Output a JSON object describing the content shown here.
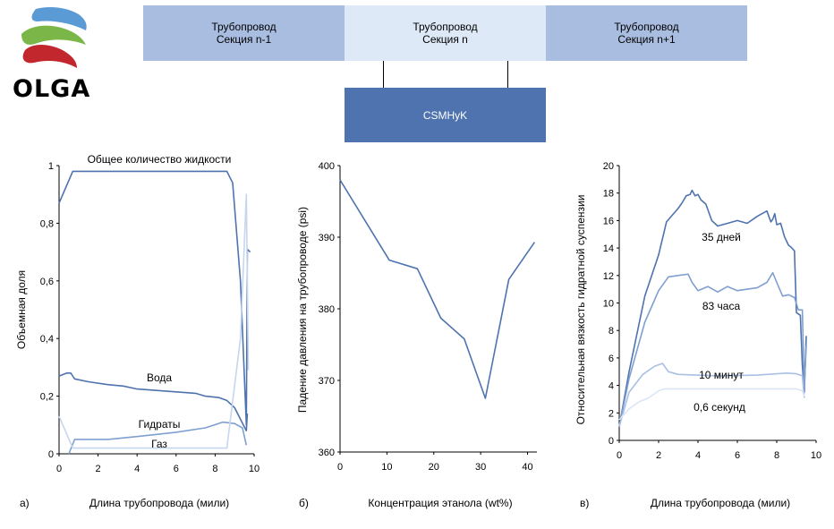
{
  "logo": {
    "text": "OLGA",
    "colors": [
      "#5b9bd5",
      "#7ab648",
      "#c1272d"
    ]
  },
  "sections": [
    {
      "line1": "Трубопровод",
      "line2": "Секция n-1",
      "color": "#a9bde0"
    },
    {
      "line1": "Трубопровод",
      "line2": "Секция n",
      "color": "#dde9f7"
    },
    {
      "line1": "Трубопровод",
      "line2": "Секция n+1",
      "color": "#a9bde0"
    }
  ],
  "module_box": {
    "label": "CSMHyK",
    "color": "#4e73ae"
  },
  "chart_data": [
    {
      "type": "line",
      "panel_label": "а)",
      "xlabel": "Длина трубопровода (мили)",
      "ylabel": "Объемная доля",
      "xlim": [
        0,
        10
      ],
      "ylim": [
        0,
        1
      ],
      "xticks": [
        "0",
        "2",
        "4",
        "6",
        "8",
        "10"
      ],
      "yticks": [
        "0",
        "0,2",
        "0,4",
        "0,6",
        "0,8",
        "1"
      ],
      "grid": false,
      "series": [
        {
          "name": "Общее количество жидкости",
          "color": "#4e73ae",
          "points": [
            [
              0,
              0.87
            ],
            [
              0.7,
              0.98
            ],
            [
              8.6,
              0.98
            ],
            [
              8.9,
              0.94
            ],
            [
              9.3,
              0.6
            ],
            [
              9.6,
              0.1
            ],
            [
              9.65,
              0.71
            ],
            [
              9.8,
              0.7
            ]
          ]
        },
        {
          "name": "Вода",
          "color": "#4e73ae",
          "points": [
            [
              0,
              0.27
            ],
            [
              0.4,
              0.28
            ],
            [
              0.6,
              0.28
            ],
            [
              0.8,
              0.26
            ],
            [
              1.5,
              0.25
            ],
            [
              2.5,
              0.24
            ],
            [
              3.3,
              0.235
            ],
            [
              4.0,
              0.225
            ],
            [
              5.0,
              0.22
            ],
            [
              6.0,
              0.215
            ],
            [
              7.0,
              0.21
            ],
            [
              7.5,
              0.2
            ],
            [
              8.2,
              0.195
            ],
            [
              8.6,
              0.185
            ],
            [
              9.0,
              0.16
            ],
            [
              9.3,
              0.12
            ],
            [
              9.6,
              0.08
            ],
            [
              9.65,
              0.14
            ]
          ]
        },
        {
          "name": "Гидраты",
          "color": "#7f9fd0",
          "points": [
            [
              0.5,
              0.0
            ],
            [
              0.8,
              0.05
            ],
            [
              2.5,
              0.05
            ],
            [
              4.0,
              0.06
            ],
            [
              6.0,
              0.075
            ],
            [
              7.5,
              0.09
            ],
            [
              8.4,
              0.11
            ],
            [
              9.0,
              0.105
            ],
            [
              9.4,
              0.09
            ],
            [
              9.6,
              0.03
            ]
          ]
        },
        {
          "name": "Газ",
          "color": "#c5d6ee",
          "points": [
            [
              0,
              0.13
            ],
            [
              0.7,
              0.02
            ],
            [
              8.6,
              0.02
            ],
            [
              9.3,
              0.4
            ],
            [
              9.6,
              0.9
            ],
            [
              9.7,
              0.29
            ]
          ]
        }
      ]
    },
    {
      "type": "line",
      "panel_label": "б)",
      "xlabel": "Концентрация этанола (wt%)",
      "ylabel": "Падение давления на трубопроводе (psi)",
      "xlim": [
        0,
        42
      ],
      "ylim": [
        360,
        400
      ],
      "xticks": [
        "0",
        "10",
        "20",
        "30",
        "40"
      ],
      "yticks": [
        "360",
        "370",
        "380",
        "390",
        "400"
      ],
      "grid": false,
      "series": [
        {
          "name": "",
          "color": "#4e73ae",
          "points": [
            [
              0,
              398.0
            ],
            [
              10.5,
              386.8
            ],
            [
              16.5,
              385.6
            ],
            [
              21.5,
              378.7
            ],
            [
              26.5,
              375.8
            ],
            [
              31,
              367.5
            ],
            [
              36,
              384.1
            ],
            [
              41.5,
              389.3
            ]
          ]
        }
      ]
    },
    {
      "type": "line",
      "panel_label": "в)",
      "xlabel": "Длина трубопровода (мили)",
      "ylabel": "Относительная вязкость гидратной суспензии",
      "xlim": [
        0,
        10
      ],
      "ylim": [
        0,
        20
      ],
      "xticks": [
        "0",
        "2",
        "4",
        "6",
        "8",
        "10"
      ],
      "yticks": [
        "0",
        "2",
        "4",
        "6",
        "8",
        "10",
        "12",
        "14",
        "16",
        "18",
        "20"
      ],
      "grid": false,
      "series": [
        {
          "name": "35 дней",
          "color": "#4e73ae",
          "points": [
            [
              0,
              1
            ],
            [
              0.5,
              5
            ],
            [
              1.3,
              10.5
            ],
            [
              2.0,
              13.5
            ],
            [
              2.4,
              15.9
            ],
            [
              3.0,
              16.9
            ],
            [
              3.2,
              17.3
            ],
            [
              3.4,
              17.8
            ],
            [
              3.6,
              17.9
            ],
            [
              3.7,
              18.2
            ],
            [
              3.85,
              17.8
            ],
            [
              4.0,
              17.9
            ],
            [
              4.15,
              17.5
            ],
            [
              4.4,
              17.2
            ],
            [
              4.7,
              16.0
            ],
            [
              5.0,
              15.6
            ],
            [
              5.5,
              15.8
            ],
            [
              6.0,
              16.0
            ],
            [
              6.5,
              15.8
            ],
            [
              7.0,
              16.3
            ],
            [
              7.5,
              16.7
            ],
            [
              7.7,
              15.9
            ],
            [
              7.8,
              16.1
            ],
            [
              7.9,
              16.5
            ],
            [
              8.0,
              15.7
            ],
            [
              8.2,
              15.8
            ],
            [
              8.4,
              14.8
            ],
            [
              8.6,
              14.2
            ],
            [
              8.7,
              14.1
            ],
            [
              8.9,
              13.8
            ],
            [
              9.0,
              9.3
            ],
            [
              9.2,
              9.1
            ],
            [
              9.3,
              5.5
            ],
            [
              9.4,
              3.5
            ],
            [
              9.5,
              7.6
            ]
          ]
        },
        {
          "name": "83 часа",
          "color": "#7f9fd0",
          "points": [
            [
              0,
              1
            ],
            [
              0.5,
              4.5
            ],
            [
              1.3,
              8.6
            ],
            [
              2.0,
              10.9
            ],
            [
              2.5,
              11.9
            ],
            [
              3.5,
              12.1
            ],
            [
              3.7,
              11.5
            ],
            [
              4.0,
              10.9
            ],
            [
              4.5,
              11.2
            ],
            [
              5.0,
              10.8
            ],
            [
              5.5,
              11.2
            ],
            [
              6.0,
              10.9
            ],
            [
              6.5,
              11.0
            ],
            [
              7.0,
              11.1
            ],
            [
              7.5,
              11.5
            ],
            [
              7.8,
              12.2
            ],
            [
              8.0,
              11.5
            ],
            [
              8.3,
              10.5
            ],
            [
              8.6,
              10.6
            ],
            [
              8.9,
              10.4
            ],
            [
              9.1,
              9.5
            ],
            [
              9.3,
              9.5
            ],
            [
              9.4,
              3.9
            ],
            [
              9.5,
              6.9
            ]
          ]
        },
        {
          "name": "10 минут",
          "color": "#a9c0e3",
          "points": [
            [
              0,
              1
            ],
            [
              0.5,
              3.5
            ],
            [
              1.2,
              4.8
            ],
            [
              1.8,
              5.4
            ],
            [
              2.2,
              5.6
            ],
            [
              2.5,
              5.0
            ],
            [
              3.0,
              4.8
            ],
            [
              5.0,
              4.7
            ],
            [
              7.0,
              4.75
            ],
            [
              8.5,
              4.9
            ],
            [
              9.0,
              4.85
            ],
            [
              9.3,
              4.7
            ],
            [
              9.4,
              3.1
            ]
          ]
        },
        {
          "name": "0,6 секунд",
          "color": "#dbe6f5",
          "points": [
            [
              0,
              1.5
            ],
            [
              0.5,
              2.3
            ],
            [
              1.0,
              2.8
            ],
            [
              1.5,
              3.1
            ],
            [
              2.0,
              3.6
            ],
            [
              2.3,
              3.75
            ],
            [
              5.0,
              3.75
            ],
            [
              9.0,
              3.75
            ],
            [
              9.3,
              3.6
            ],
            [
              9.4,
              3.2
            ]
          ]
        }
      ]
    }
  ]
}
